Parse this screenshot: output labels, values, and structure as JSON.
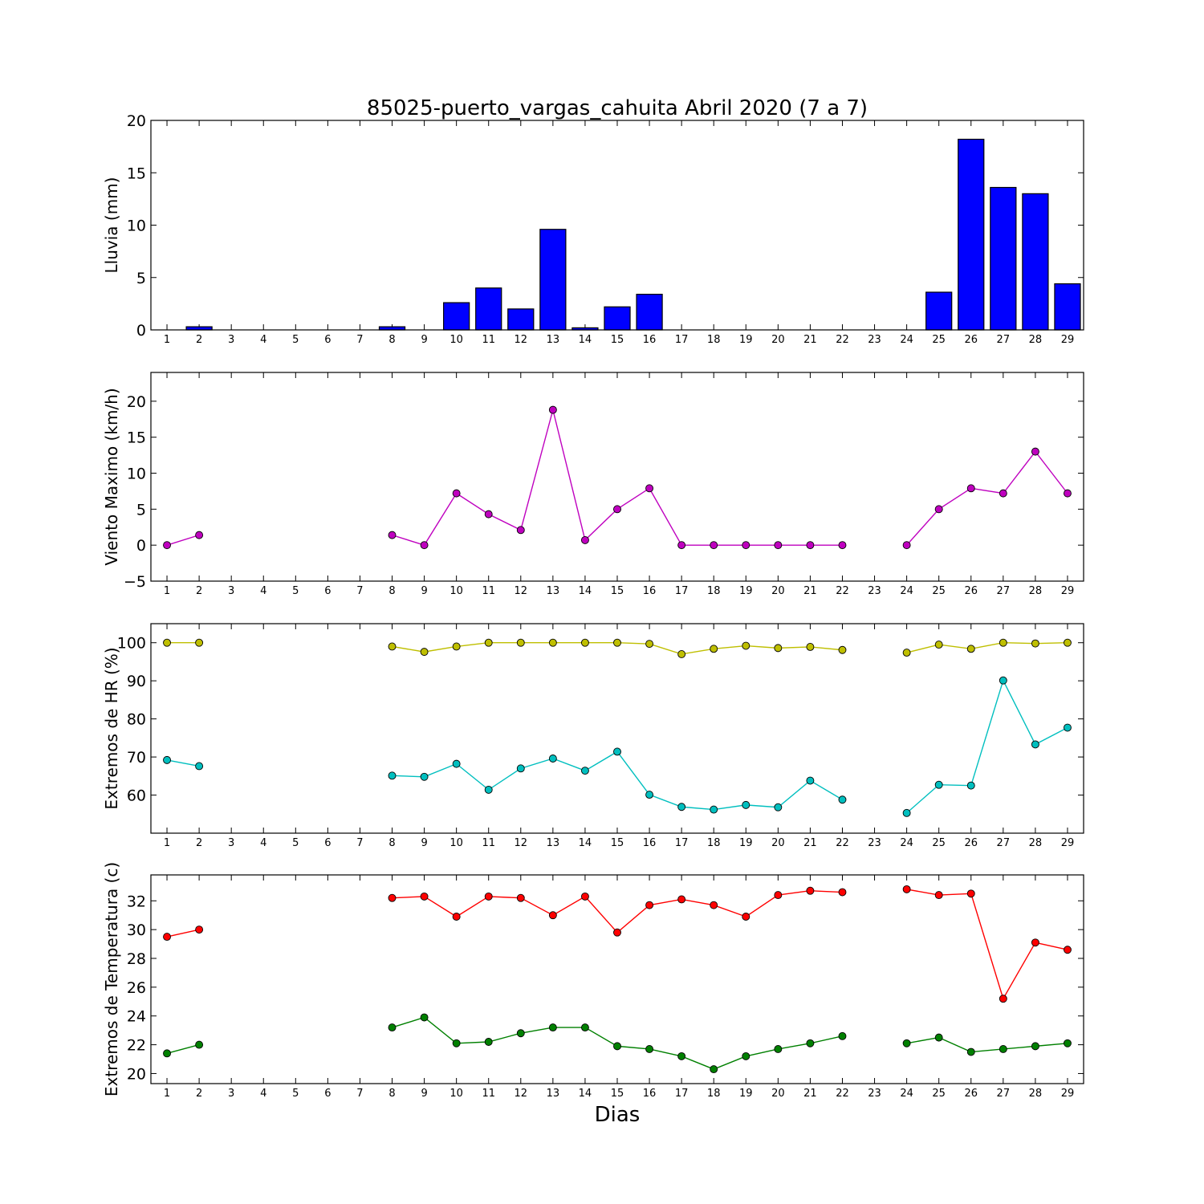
{
  "figure": {
    "title": "85025-puerto_vargas_cahuita Abril 2020  (7 a 7)",
    "xlabel": "Dias"
  },
  "chart_data": [
    {
      "type": "bar",
      "ylabel": "Lluvia (mm)",
      "ylim": [
        0,
        20
      ],
      "yticks": [
        0,
        5,
        10,
        15,
        20
      ],
      "categories": [
        "1",
        "2",
        "3",
        "4",
        "5",
        "6",
        "7",
        "8",
        "9",
        "10",
        "11",
        "12",
        "13",
        "14",
        "15",
        "16",
        "17",
        "18",
        "19",
        "20",
        "21",
        "22",
        "23",
        "24",
        "25",
        "26",
        "27",
        "28",
        "29"
      ],
      "series": [
        {
          "color": "#0000ff",
          "values": [
            0,
            0.3,
            0,
            0,
            0,
            0,
            0,
            0.3,
            0,
            2.6,
            4.0,
            2.0,
            9.6,
            0.2,
            2.2,
            3.4,
            0,
            0,
            0,
            0,
            0,
            0,
            0,
            0,
            3.6,
            18.2,
            13.6,
            13.0,
            4.4
          ]
        }
      ],
      "grid": false
    },
    {
      "type": "line",
      "ylabel": "Viento Maximo (km/h)",
      "ylim": [
        -5,
        24
      ],
      "yticks": [
        -5,
        0,
        5,
        10,
        15,
        20
      ],
      "ytick_labels": [
        "−5",
        "0",
        "5",
        "10",
        "15",
        "20"
      ],
      "x": [
        1,
        2,
        3,
        4,
        5,
        6,
        7,
        8,
        9,
        10,
        11,
        12,
        13,
        14,
        15,
        16,
        17,
        18,
        19,
        20,
        21,
        22,
        23,
        24,
        25,
        26,
        27,
        28,
        29
      ],
      "series": [
        {
          "color": "#bf00bf",
          "values": [
            0,
            1.4,
            null,
            null,
            null,
            null,
            null,
            1.4,
            0,
            7.2,
            4.3,
            2.1,
            18.8,
            0.7,
            5.0,
            7.9,
            0,
            0,
            0,
            0,
            0,
            0,
            null,
            0,
            5.0,
            7.9,
            7.2,
            13.0,
            7.2
          ]
        }
      ],
      "grid": false
    },
    {
      "type": "line",
      "ylabel": "Extremos de HR (%)",
      "ylim": [
        50,
        105
      ],
      "yticks": [
        60,
        70,
        80,
        90,
        100
      ],
      "x": [
        1,
        2,
        3,
        4,
        5,
        6,
        7,
        8,
        9,
        10,
        11,
        12,
        13,
        14,
        15,
        16,
        17,
        18,
        19,
        20,
        21,
        22,
        23,
        24,
        25,
        26,
        27,
        28,
        29
      ],
      "series": [
        {
          "color": "#bfbf00",
          "values": [
            100,
            100,
            null,
            null,
            null,
            null,
            null,
            99,
            97.6,
            99,
            100,
            100,
            100,
            100,
            100,
            99.7,
            97,
            98.4,
            99.2,
            98.6,
            98.9,
            98.1,
            null,
            97.4,
            99.5,
            98.4,
            100,
            99.8,
            100
          ]
        },
        {
          "color": "#00bfbf",
          "values": [
            69.2,
            67.6,
            null,
            null,
            null,
            null,
            null,
            65.1,
            64.8,
            68.2,
            61.4,
            67.0,
            69.6,
            66.4,
            71.4,
            60.1,
            56.9,
            56.2,
            57.4,
            56.8,
            63.8,
            58.8,
            null,
            55.3,
            62.7,
            62.5,
            90.1,
            73.3,
            77.7
          ]
        }
      ],
      "grid": false
    },
    {
      "type": "line",
      "ylabel": "Extremos de Temperatura (c)",
      "ylim": [
        19.3,
        33.8
      ],
      "yticks": [
        20,
        22,
        24,
        26,
        28,
        30,
        32
      ],
      "x": [
        1,
        2,
        3,
        4,
        5,
        6,
        7,
        8,
        9,
        10,
        11,
        12,
        13,
        14,
        15,
        16,
        17,
        18,
        19,
        20,
        21,
        22,
        23,
        24,
        25,
        26,
        27,
        28,
        29
      ],
      "series": [
        {
          "color": "#ff0000",
          "values": [
            29.5,
            30.0,
            null,
            null,
            null,
            null,
            null,
            32.2,
            32.3,
            30.9,
            32.3,
            32.2,
            31.0,
            32.3,
            29.8,
            31.7,
            32.1,
            31.7,
            30.9,
            32.4,
            32.7,
            32.6,
            null,
            32.8,
            32.4,
            32.5,
            25.2,
            29.1,
            28.6
          ]
        },
        {
          "color": "#008000",
          "values": [
            21.4,
            22.0,
            null,
            null,
            null,
            null,
            null,
            23.2,
            23.9,
            22.1,
            22.2,
            22.8,
            23.2,
            23.2,
            21.9,
            21.7,
            21.2,
            20.3,
            21.2,
            21.7,
            22.1,
            22.6,
            null,
            22.1,
            22.5,
            21.5,
            21.7,
            21.9,
            22.1
          ]
        }
      ],
      "grid": false
    }
  ]
}
